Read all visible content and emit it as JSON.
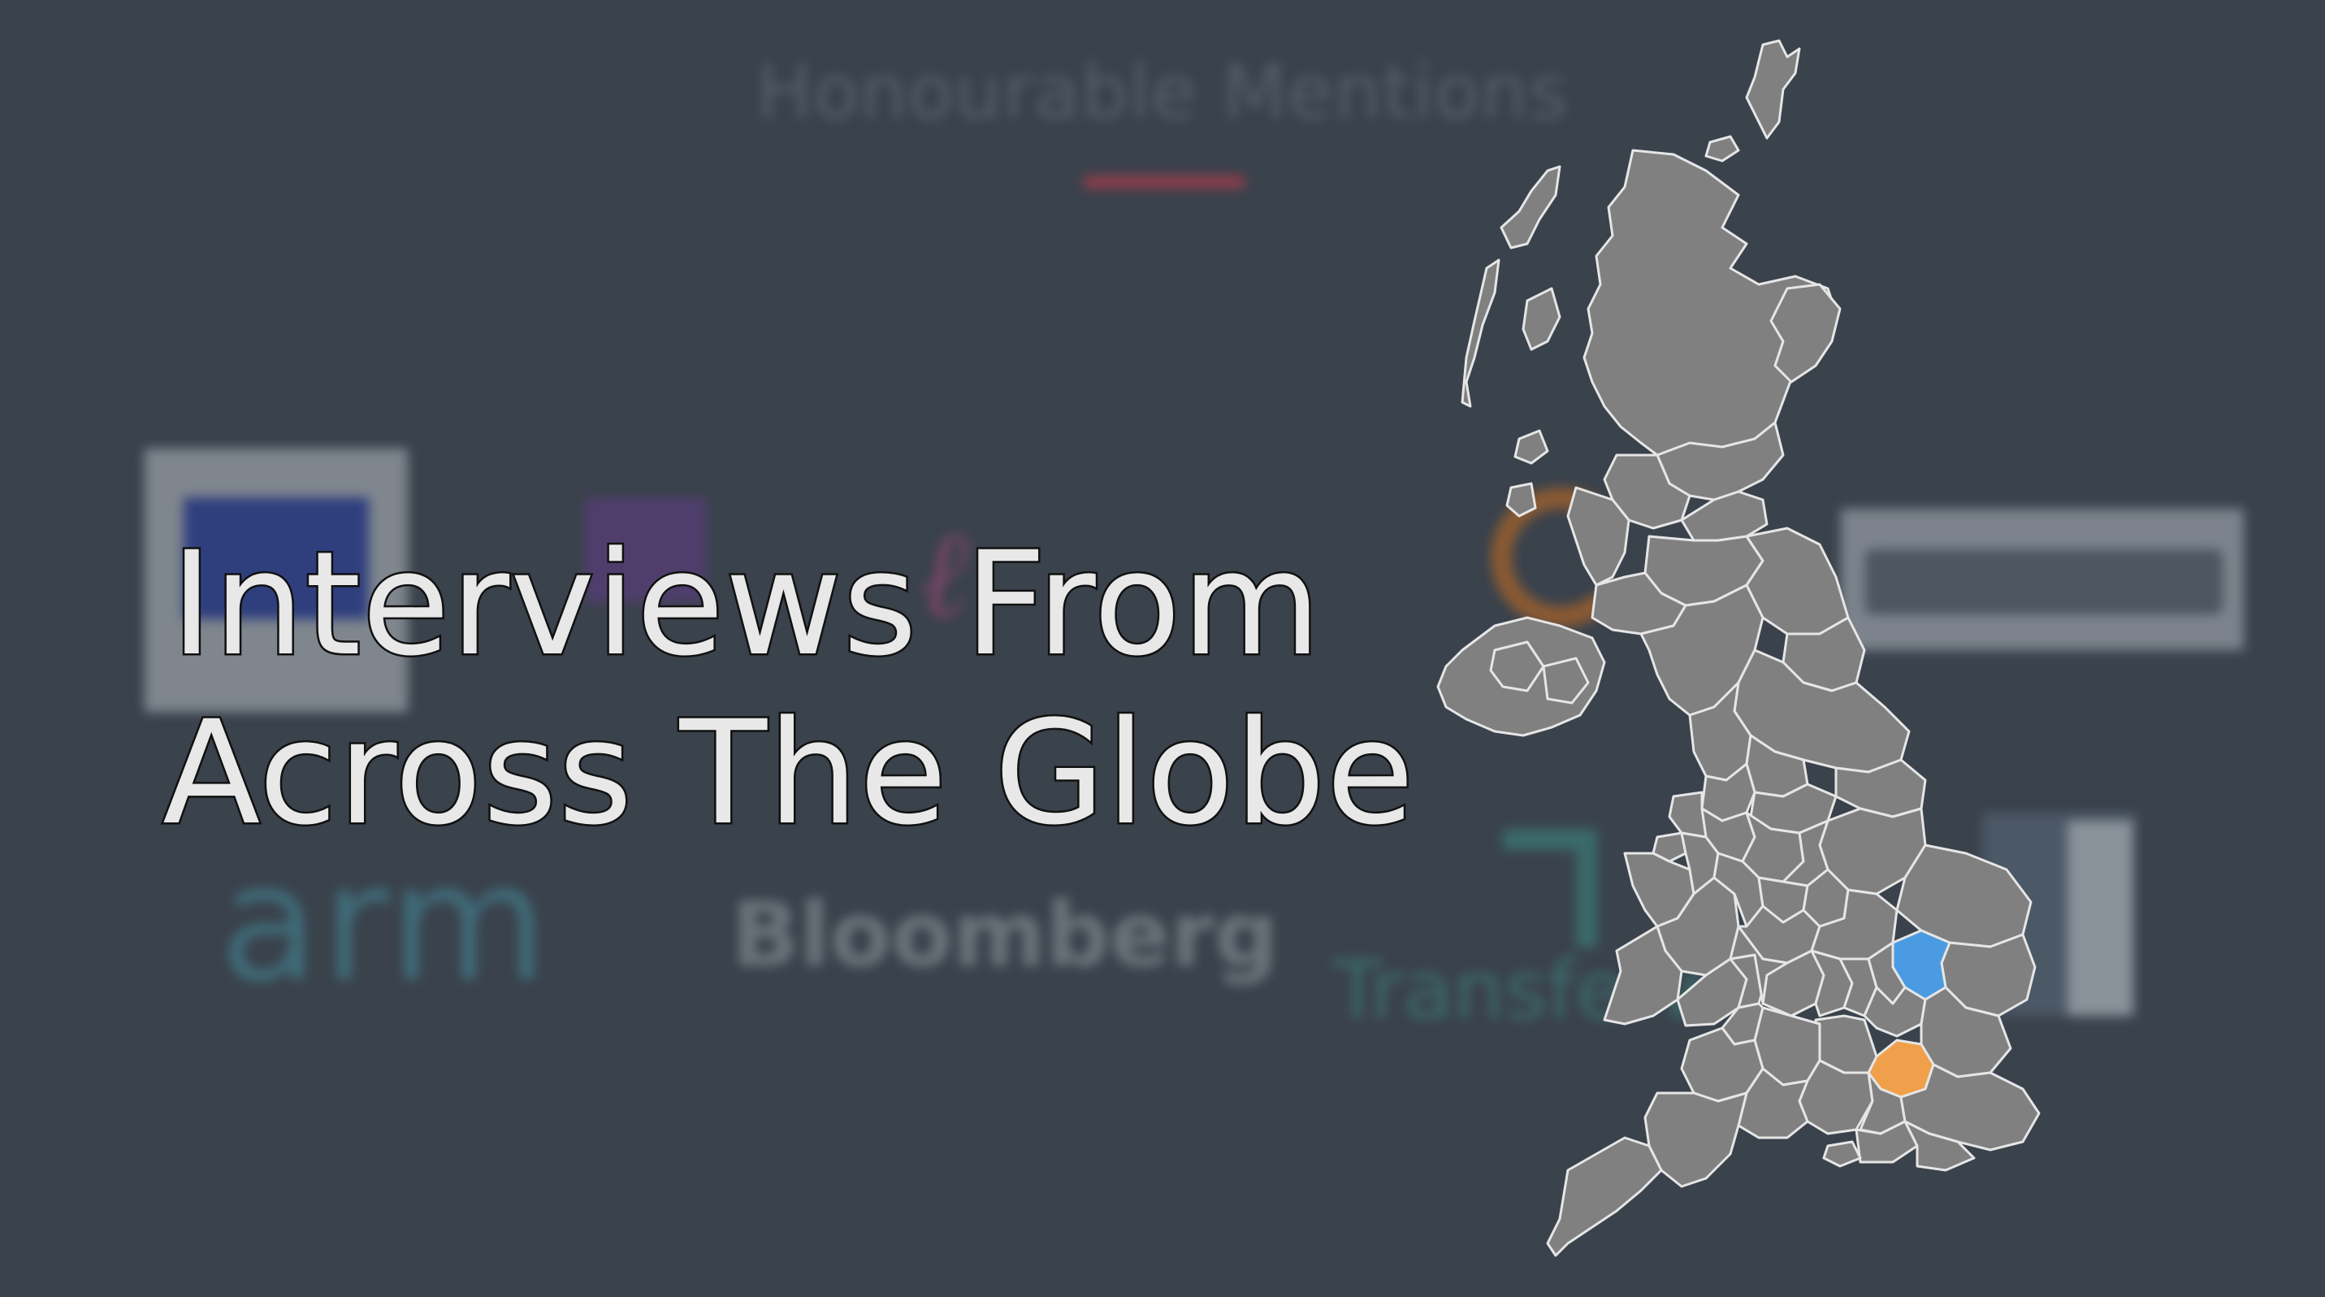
{
  "background": {
    "section_title": "Honourable Mentions",
    "logos": {
      "arm": "arm",
      "bloomberg": "Bloomberg",
      "transfer": "Transferw"
    }
  },
  "headline": {
    "line1": "Interviews From",
    "line2": "Across The Globe"
  },
  "map": {
    "land_color": "#808080",
    "border_color": "#e6e6e6",
    "highlight_blue": "#4a9be2",
    "highlight_orange": "#f0a04a"
  }
}
